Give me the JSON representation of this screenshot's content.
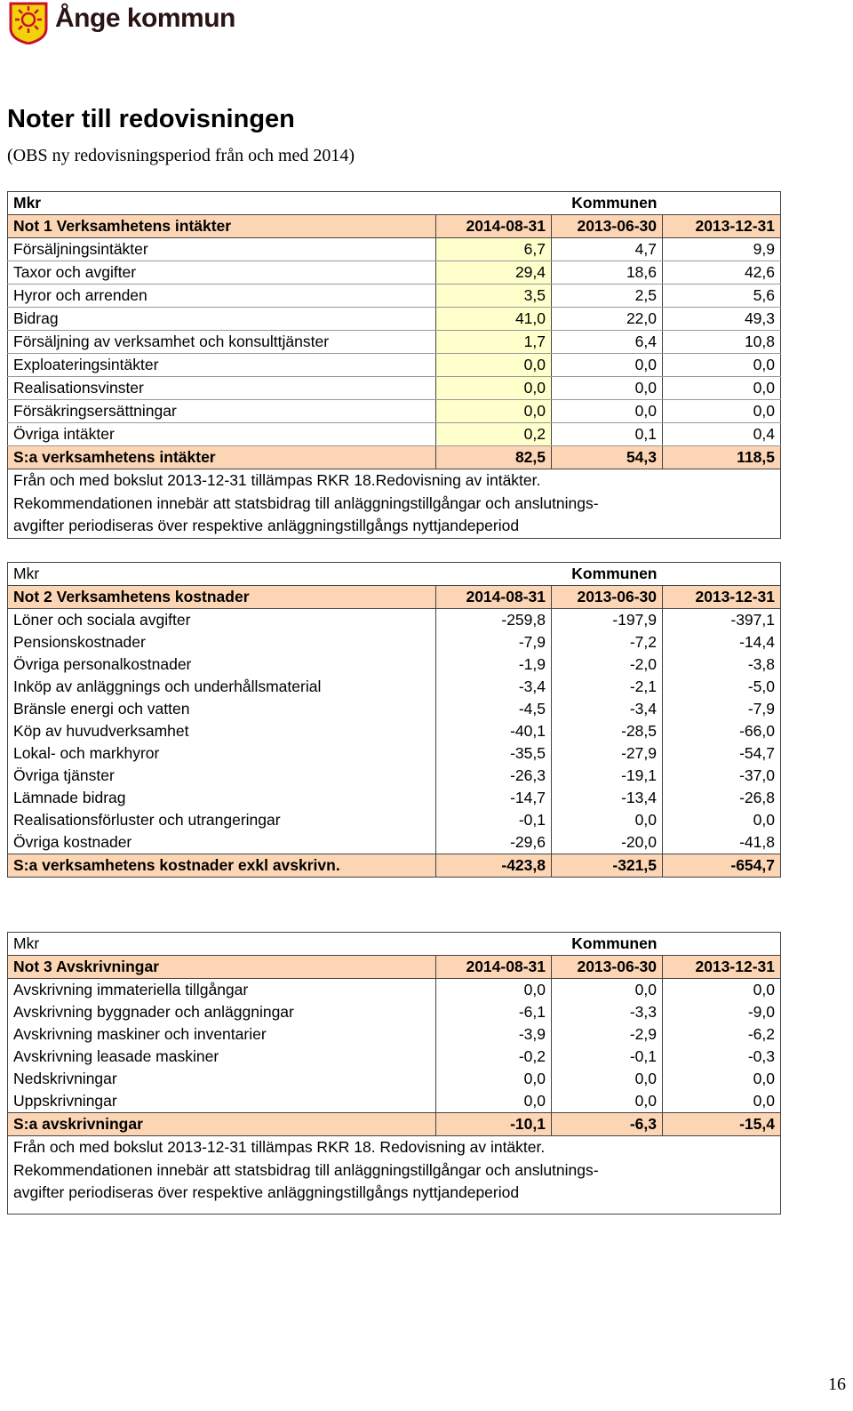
{
  "header": {
    "logo_text": "Ånge kommun"
  },
  "title": "Noter till redovisningen",
  "subtitle": "(OBS ny redovisningsperiod från och med 2014)",
  "tables": [
    {
      "unit": "Mkr",
      "group": "Kommunen",
      "heading": [
        "Not 1 Verksamhetens intäkter",
        "2014-08-31",
        "2013-06-30",
        "2013-12-31"
      ],
      "rows": [
        [
          "Försäljningsintäkter",
          "6,7",
          "4,7",
          "9,9"
        ],
        [
          "Taxor och avgifter",
          "29,4",
          "18,6",
          "42,6"
        ],
        [
          "Hyror och arrenden",
          "3,5",
          "2,5",
          "5,6"
        ],
        [
          "Bidrag",
          "41,0",
          "22,0",
          "49,3"
        ],
        [
          "Försäljning av verksamhet och konsulttjänster",
          "1,7",
          "6,4",
          "10,8"
        ],
        [
          "Exploateringsintäkter",
          "0,0",
          "0,0",
          "0,0"
        ],
        [
          "Realisationsvinster",
          "0,0",
          "0,0",
          "0,0"
        ],
        [
          "Försäkringsersättningar",
          "0,0",
          "0,0",
          "0,0"
        ],
        [
          "Övriga intäkter",
          "0,2",
          "0,1",
          "0,4"
        ]
      ],
      "total": [
        "S:a verksamhetens intäkter",
        "82,5",
        "54,3",
        "118,5"
      ],
      "notes": [
        "Från och med bokslut 2013-12-31 tillämpas RKR 18.Redovisning av intäkter.",
        "Rekommendationen innebär att statsbidrag till anläggningstillgångar och anslutnings-",
        "avgifter periodiseras över respektive anläggningstillgångs nyttjandeperiod"
      ]
    },
    {
      "unit": "Mkr",
      "group": "Kommunen",
      "heading": [
        "Not 2 Verksamhetens kostnader",
        "2014-08-31",
        "2013-06-30",
        "2013-12-31"
      ],
      "rows": [
        [
          "Löner och sociala avgifter",
          "-259,8",
          "-197,9",
          "-397,1"
        ],
        [
          "Pensionskostnader",
          "-7,9",
          "-7,2",
          "-14,4"
        ],
        [
          "Övriga personalkostnader",
          "-1,9",
          "-2,0",
          "-3,8"
        ],
        [
          "Inköp av anläggnings och underhållsmaterial",
          "-3,4",
          "-2,1",
          "-5,0"
        ],
        [
          "Bränsle energi och vatten",
          "-4,5",
          "-3,4",
          "-7,9"
        ],
        [
          "Köp av huvudverksamhet",
          "-40,1",
          "-28,5",
          "-66,0"
        ],
        [
          "Lokal- och markhyror",
          "-35,5",
          "-27,9",
          "-54,7"
        ],
        [
          "Övriga tjänster",
          "-26,3",
          "-19,1",
          "-37,0"
        ],
        [
          "Lämnade bidrag",
          "-14,7",
          "-13,4",
          "-26,8"
        ],
        [
          "Realisationsförluster och utrangeringar",
          "-0,1",
          "0,0",
          "0,0"
        ],
        [
          "Övriga kostnader",
          "-29,6",
          "-20,0",
          "-41,8"
        ]
      ],
      "total": [
        "S:a verksamhetens kostnader exkl avskrivn.",
        "-423,8",
        "-321,5",
        "-654,7"
      ],
      "notes": []
    },
    {
      "unit": "Mkr",
      "group": "Kommunen",
      "heading": [
        "Not 3 Avskrivningar",
        "2014-08-31",
        "2013-06-30",
        "2013-12-31"
      ],
      "rows": [
        [
          "Avskrivning immateriella tillgångar",
          "0,0",
          "0,0",
          "0,0"
        ],
        [
          "Avskrivning byggnader och anläggningar",
          "-6,1",
          "-3,3",
          "-9,0"
        ],
        [
          "Avskrivning maskiner och inventarier",
          "-3,9",
          "-2,9",
          "-6,2"
        ],
        [
          "Avskrivning leasade maskiner",
          "-0,2",
          "-0,1",
          "-0,3"
        ],
        [
          "Nedskrivningar",
          "0,0",
          "0,0",
          "0,0"
        ],
        [
          "Uppskrivningar",
          "0,0",
          "0,0",
          "0,0"
        ]
      ],
      "total": [
        "S:a avskrivningar",
        "-10,1",
        "-6,3",
        "-15,4"
      ],
      "notes": [
        "Från och med bokslut 2013-12-31 tillämpas RKR 18. Redovisning av intäkter.",
        "Rekommendationen innebär att statsbidrag till anläggningstillgångar och anslutnings-",
        "avgifter periodiseras över respektive anläggningstillgångs nyttjandeperiod"
      ]
    }
  ],
  "page_number": "16"
}
